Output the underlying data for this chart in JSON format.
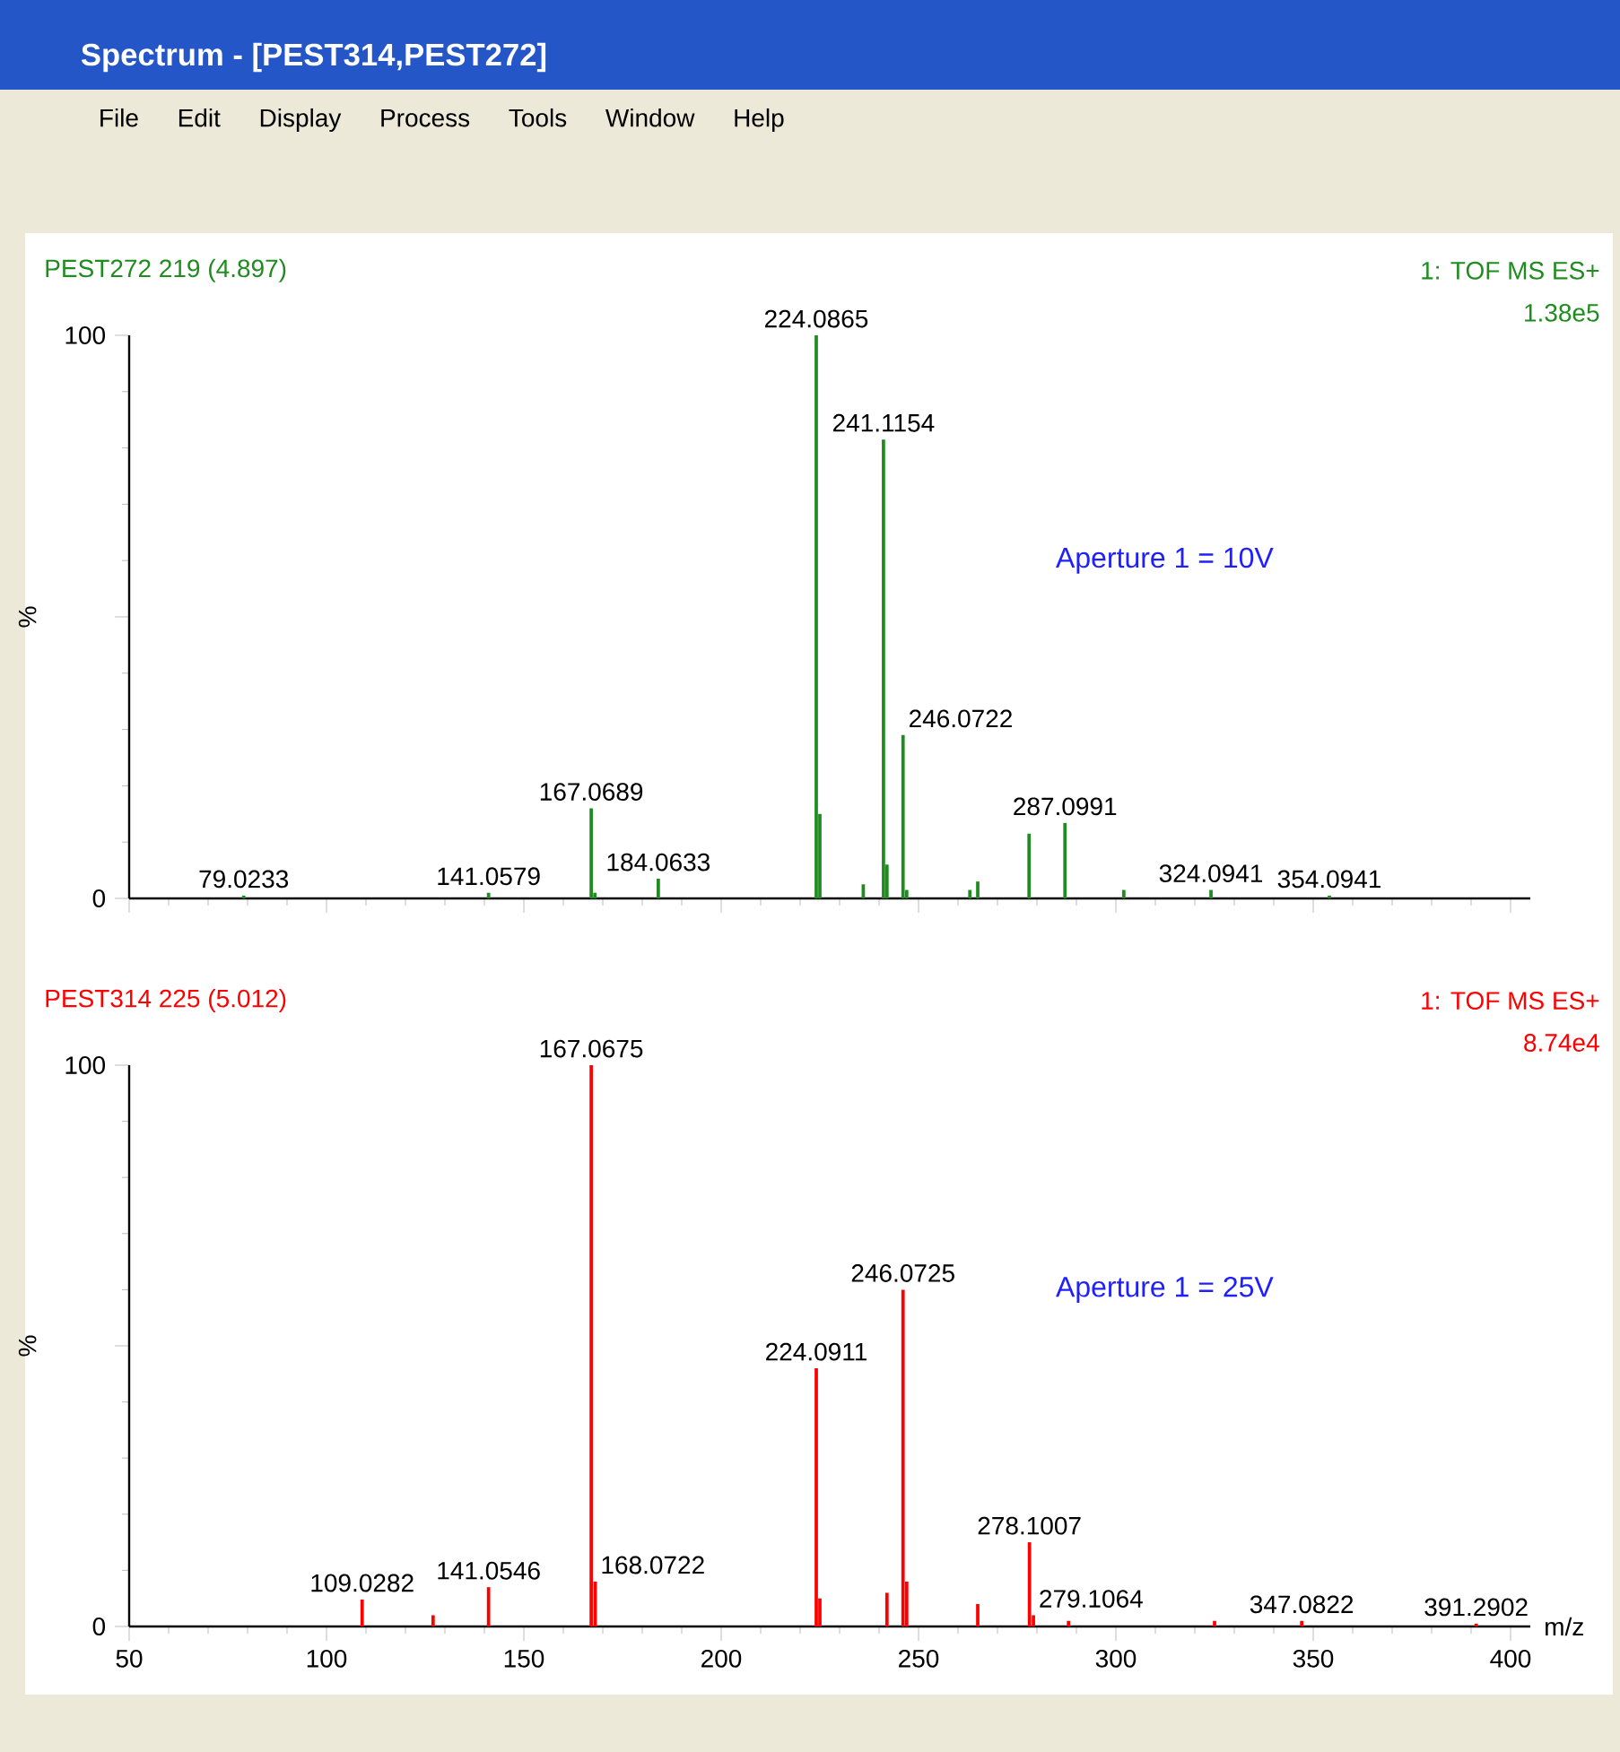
{
  "chart_data": [
    {
      "type": "bar",
      "title": "PEST272 219 (4.897)",
      "ylabel": "%",
      "color": "#1e8c1e",
      "xlim": [
        50,
        405
      ],
      "ylim": [
        0,
        100
      ],
      "tick_labels": "y",
      "xticks": [
        50,
        100,
        150,
        200,
        250,
        300,
        350,
        400
      ],
      "yticks": [
        0,
        {
          "value": 50,
          "label": null
        },
        100
      ],
      "x": [
        79.0233,
        141.0579,
        167.0689,
        168,
        184.0633,
        224.0865,
        225,
        236,
        241.1154,
        242,
        246.0722,
        247,
        263,
        265,
        278,
        287.0991,
        302,
        324.0941,
        354.0941
      ],
      "values": [
        0.5,
        1,
        16,
        1,
        3.5,
        100,
        15,
        2.5,
        81.5,
        6,
        29,
        1.5,
        1.5,
        3,
        11.5,
        13.4,
        1.5,
        1.5,
        0.5
      ],
      "annotations": [
        "Spectrum - [PEST314,PEST272]",
        "File",
        "Edit",
        "Display",
        "Process",
        "Tools",
        "Window",
        "Help",
        "1: TOF MS ES+",
        "1.38e5",
        "Aperture 1 = 10V",
        {
          "text": "79.0233",
          "x": 79.0233,
          "y": 0.5
        },
        {
          "text": "141.0579",
          "x": 141.0579,
          "y": 1
        },
        {
          "text": "167.0689",
          "x": 167.0689,
          "y": 16
        },
        {
          "text": "184.0633",
          "x": 184.0633,
          "y": 3.5
        },
        {
          "text": "224.0865",
          "x": 224.0865,
          "y": 100
        },
        {
          "text": "241.1154",
          "x": 241.1154,
          "y": 81.5
        },
        {
          "text": "246.0722",
          "x": 246.0722,
          "y": 29
        },
        {
          "text": "287.0991",
          "x": 287.0991,
          "y": 13.4
        },
        {
          "text": "324.0941",
          "x": 324.0941,
          "y": 1.5
        },
        {
          "text": "354.0941",
          "x": 354.0941,
          "y": 0.5
        }
      ]
    },
    {
      "type": "bar",
      "title": "PEST314 225 (5.012)",
      "ylabel": "%",
      "xlabel": "m/z",
      "color": "#ff0000",
      "xlim": [
        50,
        405
      ],
      "ylim": [
        0,
        100
      ],
      "xticks": [
        50,
        100,
        150,
        200,
        250,
        300,
        350,
        400
      ],
      "yticks": [
        0,
        {
          "value": 50,
          "label": null
        },
        100
      ],
      "x": [
        109.0282,
        127,
        141.0546,
        167.0675,
        168.0722,
        224.0911,
        225,
        242,
        246.0725,
        247,
        265,
        278.1007,
        279.1064,
        288,
        325,
        347.0822,
        391.2902
      ],
      "values": [
        4.8,
        2,
        7,
        100,
        8,
        46,
        5,
        6,
        60,
        8,
        4,
        15,
        2,
        1,
        1,
        1,
        0.5
      ],
      "annotations": [
        "1: TOF MS ES+",
        "8.74e4",
        "Aperture 1 = 25V",
        {
          "text": "109.0282",
          "x": 109.0282,
          "y": 4.8
        },
        {
          "text": "141.0546",
          "x": 141.0546,
          "y": 7
        },
        {
          "text": "167.0675",
          "x": 167.0675,
          "y": 100
        },
        {
          "text": "168.0722",
          "x": 168.0722,
          "y": 8
        },
        {
          "text": "224.0911",
          "x": 224.0911,
          "y": 46
        },
        {
          "text": "246.0725",
          "x": 246.0725,
          "y": 60
        },
        {
          "text": "278.1007",
          "x": 278.1007,
          "y": 15
        },
        {
          "text": "279.1064",
          "x": 279.1064,
          "y": 2
        },
        {
          "text": "347.0822",
          "x": 347.0822,
          "y": 1
        },
        {
          "text": "391.2902",
          "x": 391.2902,
          "y": 0.5
        }
      ]
    }
  ]
}
